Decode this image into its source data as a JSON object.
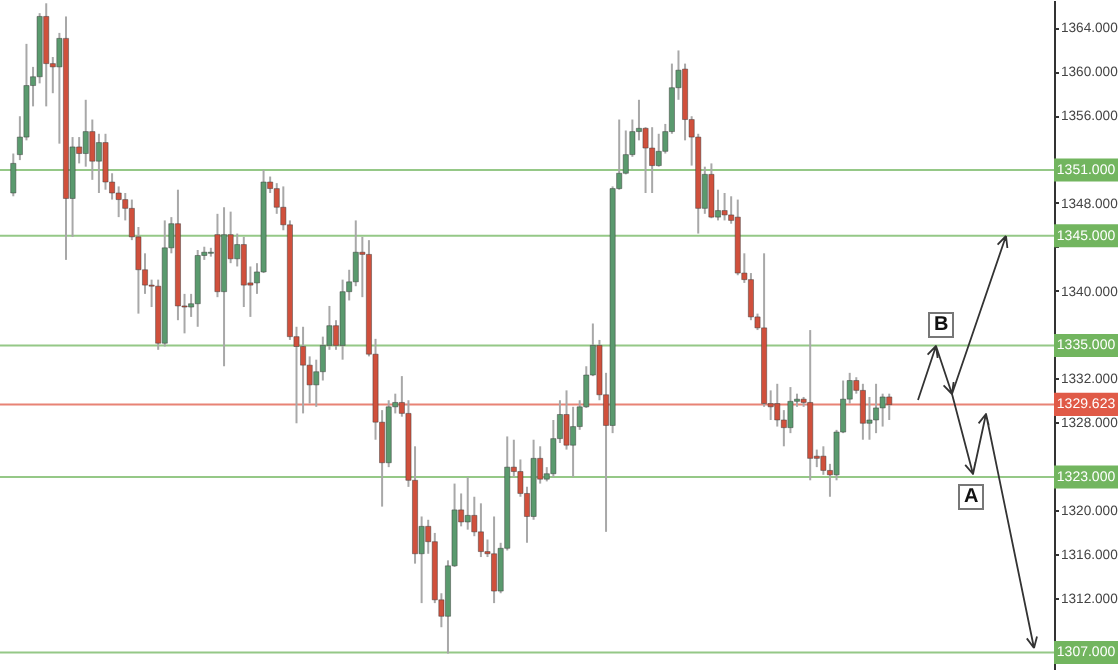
{
  "chart_data": {
    "type": "candlestick",
    "categories": [
      null,
      null,
      null,
      null,
      null,
      null,
      null,
      null,
      null,
      null,
      null,
      null,
      null,
      null,
      null,
      null,
      null,
      null,
      null,
      null,
      null,
      null,
      null,
      null,
      null,
      null,
      null,
      null,
      null,
      null,
      null,
      null,
      null,
      null,
      null,
      null,
      null,
      null,
      null,
      null,
      null,
      null,
      null,
      null,
      null,
      null,
      null,
      null,
      null,
      null,
      null,
      null,
      null,
      null,
      null,
      null,
      null,
      null,
      null,
      null,
      null,
      null,
      null,
      null,
      null,
      null,
      null,
      null,
      null,
      null,
      null,
      null,
      null,
      null,
      null,
      null,
      null,
      null,
      null,
      null,
      null,
      null,
      null,
      null,
      null,
      null,
      null,
      null,
      null,
      null,
      null,
      null,
      null,
      null,
      null,
      null,
      null,
      null,
      null,
      null,
      null,
      null,
      null,
      null,
      null,
      null,
      null,
      null,
      null,
      null,
      null,
      null,
      null,
      null,
      null,
      null,
      null,
      null,
      null,
      null,
      null,
      null,
      null,
      null,
      null,
      null,
      null,
      null,
      null,
      null,
      null,
      null,
      null,
      null,
      null,
      null,
      null,
      null,
      null,
      null,
      null,
      null,
      null,
      null,
      null,
      null,
      null,
      null,
      null,
      null,
      null,
      null,
      null,
      null,
      null,
      null,
      null
    ],
    "ohlc": [
      [
        1348.9,
        1352.5,
        1348.6,
        1351.6
      ],
      [
        1352.4,
        1355.9,
        1351.9,
        1354.0
      ],
      [
        1354.0,
        1362.5,
        1353.7,
        1358.7
      ],
      [
        1358.7,
        1360.4,
        1356.8,
        1359.5
      ],
      [
        1359.5,
        1365.3,
        1358.9,
        1365.0
      ],
      [
        1365.0,
        1366.2,
        1356.8,
        1360.7
      ],
      [
        1360.7,
        1361.3,
        1358.0,
        1360.4
      ],
      [
        1360.4,
        1363.5,
        1353.4,
        1363.0
      ],
      [
        1363.0,
        1365.0,
        1342.8,
        1348.4
      ],
      [
        1348.4,
        1354.0,
        1344.9,
        1353.1
      ],
      [
        1353.1,
        1354.0,
        1351.6,
        1352.5
      ],
      [
        1352.5,
        1357.4,
        1351.3,
        1354.5
      ],
      [
        1354.5,
        1355.6,
        1350.1,
        1351.8
      ],
      [
        1351.8,
        1354.3,
        1348.9,
        1353.5
      ],
      [
        1353.5,
        1354.3,
        1349.2,
        1349.9
      ],
      [
        1349.9,
        1350.7,
        1348.3,
        1348.9
      ],
      [
        1348.9,
        1349.5,
        1346.7,
        1348.3
      ],
      [
        1348.3,
        1348.9,
        1346.4,
        1347.5
      ],
      [
        1347.5,
        1348.3,
        1344.6,
        1344.9
      ],
      [
        1344.9,
        1345.8,
        1337.9,
        1341.9
      ],
      [
        1341.9,
        1343.4,
        1339.7,
        1340.5
      ],
      [
        1340.5,
        1341.0,
        1338.5,
        1340.4
      ],
      [
        1340.4,
        1341.0,
        1334.6,
        1335.2
      ],
      [
        1335.2,
        1346.4,
        1334.9,
        1343.9
      ],
      [
        1343.9,
        1346.7,
        1343.4,
        1346.1
      ],
      [
        1346.1,
        1349.2,
        1337.3,
        1338.6
      ],
      [
        1338.6,
        1339.7,
        1336.1,
        1338.5
      ],
      [
        1338.5,
        1339.7,
        1337.6,
        1338.8
      ],
      [
        1338.8,
        1343.7,
        1336.7,
        1343.2
      ],
      [
        1343.2,
        1344.0,
        1342.8,
        1343.5
      ],
      [
        1343.4,
        1343.9,
        1343.1,
        1343.5
      ],
      [
        1345.1,
        1347.0,
        1339.4,
        1339.9
      ],
      [
        1339.9,
        1347.6,
        1333.1,
        1345.1
      ],
      [
        1345.1,
        1347.2,
        1342.5,
        1342.9
      ],
      [
        1342.9,
        1345.2,
        1342.2,
        1344.2
      ],
      [
        1344.2,
        1344.9,
        1338.5,
        1340.5
      ],
      [
        1340.7,
        1342.2,
        1337.6,
        1340.5
      ],
      [
        1340.7,
        1342.5,
        1339.7,
        1341.7
      ],
      [
        1341.7,
        1351.0,
        1341.6,
        1349.9
      ],
      [
        1349.9,
        1350.4,
        1348.9,
        1349.3
      ],
      [
        1349.3,
        1349.8,
        1347.0,
        1347.6
      ],
      [
        1347.6,
        1349.5,
        1345.5,
        1346.0
      ],
      [
        1346.0,
        1346.4,
        1335.5,
        1335.8
      ],
      [
        1335.8,
        1336.7,
        1327.9,
        1334.9
      ],
      [
        1334.9,
        1336.7,
        1328.8,
        1333.2
      ],
      [
        1333.2,
        1334.0,
        1329.7,
        1331.4
      ],
      [
        1331.4,
        1333.7,
        1329.4,
        1332.6
      ],
      [
        1332.6,
        1335.8,
        1331.8,
        1335.0
      ],
      [
        1335.0,
        1338.6,
        1334.6,
        1336.8
      ],
      [
        1336.8,
        1337.3,
        1334.6,
        1335.0
      ],
      [
        1335.0,
        1341.0,
        1333.7,
        1339.9
      ],
      [
        1339.9,
        1341.9,
        1339.1,
        1340.8
      ],
      [
        1340.8,
        1346.4,
        1340.4,
        1343.5
      ],
      [
        1343.5,
        1344.9,
        1339.4,
        1343.3
      ],
      [
        1343.3,
        1344.6,
        1334.0,
        1334.2
      ],
      [
        1334.2,
        1335.6,
        1326.4,
        1328.0
      ],
      [
        1328.0,
        1329.1,
        1320.3,
        1324.3
      ],
      [
        1324.3,
        1330.0,
        1323.9,
        1329.4
      ],
      [
        1329.4,
        1330.6,
        1328.8,
        1329.8
      ],
      [
        1329.8,
        1332.2,
        1328.5,
        1328.8
      ],
      [
        1328.8,
        1330.0,
        1322.1,
        1322.7
      ],
      [
        1322.7,
        1325.8,
        1315.1,
        1316.0
      ],
      [
        1316.0,
        1319.4,
        1311.5,
        1318.5
      ],
      [
        1318.5,
        1319.1,
        1316.0,
        1317.1
      ],
      [
        1317.1,
        1317.9,
        1311.5,
        1311.8
      ],
      [
        1311.8,
        1312.4,
        1309.3,
        1310.3
      ],
      [
        1310.3,
        1315.4,
        1306.9,
        1314.9
      ],
      [
        1314.9,
        1322.4,
        1314.8,
        1320.0
      ],
      [
        1320.0,
        1321.5,
        1318.5,
        1318.9
      ],
      [
        1318.9,
        1323.0,
        1318.2,
        1319.5
      ],
      [
        1319.5,
        1321.2,
        1317.6,
        1318.0
      ],
      [
        1318.0,
        1320.6,
        1315.7,
        1316.2
      ],
      [
        1316.2,
        1317.3,
        1315.7,
        1316.0
      ],
      [
        1316.0,
        1319.4,
        1311.5,
        1312.6
      ],
      [
        1312.6,
        1317.0,
        1312.4,
        1316.5
      ],
      [
        1316.5,
        1326.7,
        1316.3,
        1323.9
      ],
      [
        1323.9,
        1326.4,
        1323.0,
        1323.5
      ],
      [
        1323.5,
        1324.6,
        1321.2,
        1321.5
      ],
      [
        1321.5,
        1322.1,
        1317.0,
        1319.4
      ],
      [
        1319.4,
        1326.4,
        1319.1,
        1324.7
      ],
      [
        1324.7,
        1325.8,
        1322.4,
        1322.8
      ],
      [
        1322.8,
        1323.9,
        1322.6,
        1323.3
      ],
      [
        1323.3,
        1328.2,
        1323.0,
        1326.5
      ],
      [
        1326.5,
        1330.0,
        1326.1,
        1328.7
      ],
      [
        1328.7,
        1330.9,
        1325.5,
        1325.9
      ],
      [
        1325.9,
        1329.4,
        1323.0,
        1327.6
      ],
      [
        1327.6,
        1330.0,
        1327.3,
        1329.4
      ],
      [
        1329.4,
        1333.1,
        1329.3,
        1332.3
      ],
      [
        1332.3,
        1337.0,
        1332.2,
        1335.0
      ],
      [
        1335.0,
        1335.5,
        1330.0,
        1330.5
      ],
      [
        1330.5,
        1332.5,
        1318.0,
        1327.7
      ],
      [
        1327.7,
        1349.5,
        1327.0,
        1349.3
      ],
      [
        1349.3,
        1355.6,
        1349.2,
        1350.7
      ],
      [
        1350.7,
        1354.6,
        1350.6,
        1352.4
      ],
      [
        1352.4,
        1355.6,
        1352.2,
        1354.5
      ],
      [
        1354.5,
        1357.4,
        1353.7,
        1354.8
      ],
      [
        1354.8,
        1354.9,
        1348.9,
        1353.0
      ],
      [
        1353.0,
        1354.9,
        1348.9,
        1351.4
      ],
      [
        1351.4,
        1354.3,
        1351.3,
        1352.7
      ],
      [
        1352.7,
        1355.2,
        1352.5,
        1354.5
      ],
      [
        1354.5,
        1360.7,
        1354.3,
        1358.5
      ],
      [
        1358.5,
        1361.9,
        1357.4,
        1360.1
      ],
      [
        1360.2,
        1360.7,
        1353.7,
        1355.6
      ],
      [
        1355.6,
        1355.9,
        1351.4,
        1354.0
      ],
      [
        1354.0,
        1354.3,
        1345.2,
        1347.5
      ],
      [
        1347.5,
        1351.3,
        1347.0,
        1350.6
      ],
      [
        1350.6,
        1351.6,
        1346.6,
        1346.7
      ],
      [
        1346.7,
        1349.2,
        1346.4,
        1347.3
      ],
      [
        1347.3,
        1348.9,
        1346.4,
        1346.9
      ],
      [
        1346.9,
        1348.6,
        1346.1,
        1346.4
      ],
      [
        1346.7,
        1348.3,
        1341.4,
        1341.6
      ],
      [
        1341.6,
        1343.4,
        1340.7,
        1341.0
      ],
      [
        1341.0,
        1341.6,
        1337.3,
        1337.6
      ],
      [
        1337.6,
        1337.9,
        1336.4,
        1336.6
      ],
      [
        1336.6,
        1343.4,
        1329.4,
        1329.7
      ],
      [
        1329.7,
        1330.9,
        1328.2,
        1329.4
      ],
      [
        1329.7,
        1331.5,
        1327.6,
        1328.2
      ],
      [
        1328.2,
        1329.1,
        1325.8,
        1327.5
      ],
      [
        1327.5,
        1331.2,
        1327.0,
        1329.9
      ],
      [
        1329.9,
        1330.6,
        1329.4,
        1330.1
      ],
      [
        1330.1,
        1330.3,
        1329.4,
        1329.8
      ],
      [
        1329.8,
        1336.4,
        1322.7,
        1324.7
      ],
      [
        1324.9,
        1325.5,
        1323.9,
        1324.7
      ],
      [
        1324.9,
        1325.8,
        1323.2,
        1323.6
      ],
      [
        1323.6,
        1324.2,
        1321.2,
        1323.2
      ],
      [
        1323.2,
        1327.3,
        1322.7,
        1327.1
      ],
      [
        1327.1,
        1331.8,
        1327.0,
        1330.1
      ],
      [
        1330.1,
        1332.5,
        1329.7,
        1331.8
      ],
      [
        1331.8,
        1332.1,
        1330.6,
        1330.9
      ],
      [
        1330.9,
        1331.5,
        1326.4,
        1327.9
      ],
      [
        1327.9,
        1330.3,
        1326.4,
        1328.2
      ],
      [
        1328.2,
        1331.5,
        1327.0,
        1329.3
      ],
      [
        1329.3,
        1330.6,
        1327.6,
        1330.3
      ],
      [
        1330.3,
        1330.6,
        1328.2,
        1329.6
      ],
      null,
      null,
      null,
      null,
      null,
      null,
      null,
      null,
      null,
      null,
      null,
      null,
      null,
      null,
      null,
      null,
      null,
      null,
      null,
      null,
      null,
      null,
      null
    ],
    "colors": [
      "#5a9a6e",
      "#5a9a6e",
      "#5a9a6e",
      "#5a9a6e",
      "#5a9a6e",
      "#d0503c",
      "#d0503c",
      "#5a9a6e",
      "#d0503c",
      "#5a9a6e",
      "#d0503c",
      "#5a9a6e",
      "#d0503c",
      "#5a9a6e",
      "#d0503c",
      "#d0503c",
      "#d0503c",
      "#d0503c",
      "#d0503c",
      "#d0503c",
      "#d0503c",
      "#d0503c",
      "#d0503c",
      "#5a9a6e",
      "#5a9a6e",
      "#d0503c",
      "#d0503c",
      "#5a9a6e",
      "#5a9a6e",
      "#5a9a6e",
      "#5a9a6e",
      "#d0503c",
      "#5a9a6e",
      "#d0503c",
      "#5a9a6e",
      "#d0503c",
      "#d0503c",
      "#5a9a6e",
      "#5a9a6e",
      "#d0503c",
      "#d0503c",
      "#d0503c",
      "#d0503c",
      "#d0503c",
      "#d0503c",
      "#d0503c",
      "#5a9a6e",
      "#5a9a6e",
      "#5a9a6e",
      "#d0503c",
      "#5a9a6e",
      "#5a9a6e",
      "#5a9a6e",
      "#d0503c",
      "#d0503c",
      "#d0503c",
      "#d0503c",
      "#5a9a6e",
      "#5a9a6e",
      "#d0503c",
      "#d0503c",
      "#d0503c",
      "#5a9a6e",
      "#d0503c",
      "#d0503c",
      "#d0503c",
      "#5a9a6e",
      "#5a9a6e",
      "#d0503c",
      "#5a9a6e",
      "#d0503c",
      "#d0503c",
      "#d0503c",
      "#d0503c",
      "#5a9a6e",
      "#5a9a6e",
      "#d0503c",
      "#d0503c",
      "#d0503c",
      "#5a9a6e",
      "#d0503c",
      "#5a9a6e",
      "#5a9a6e",
      "#5a9a6e",
      "#d0503c",
      "#5a9a6e",
      "#5a9a6e",
      "#5a9a6e",
      "#5a9a6e",
      "#d0503c",
      "#d0503c",
      "#5a9a6e",
      "#5a9a6e",
      "#5a9a6e",
      "#5a9a6e",
      "#5a9a6e",
      "#d0503c",
      "#d0503c",
      "#5a9a6e",
      "#5a9a6e",
      "#5a9a6e",
      "#5a9a6e",
      "#d0503c",
      "#d0503c",
      "#d0503c",
      "#5a9a6e",
      "#d0503c",
      "#5a9a6e",
      "#d0503c",
      "#d0503c",
      "#d0503c",
      "#d0503c",
      "#d0503c",
      "#d0503c",
      "#d0503c",
      "#d0503c",
      "#d0503c",
      "#d0503c",
      "#5a9a6e",
      "#5a9a6e",
      "#d0503c",
      "#d0503c",
      "#d0503c",
      "#d0503c",
      "#d0503c",
      "#5a9a6e",
      "#5a9a6e",
      "#5a9a6e",
      "#d0503c",
      "#d0503c",
      "#5a9a6e",
      "#5a9a6e",
      "#5a9a6e",
      "#d0503c",
      null,
      null,
      null,
      null,
      null,
      null,
      null,
      null,
      null,
      null,
      null,
      null,
      null,
      null,
      null,
      null,
      null,
      null,
      null,
      null,
      null,
      null,
      null
    ],
    "ylim": [
      1305.4,
      1366.5
    ],
    "yticks": [
      {
        "value": 1308,
        "label": null
      },
      {
        "value": 1312,
        "label": "1312.000"
      },
      {
        "value": 1316,
        "label": "1316.000"
      },
      {
        "value": 1320,
        "label": "1320.000"
      },
      {
        "value": 1324,
        "label": null
      },
      {
        "value": 1328,
        "label": "1328.000"
      },
      {
        "value": 1332,
        "label": "1332.000"
      },
      {
        "value": 1336,
        "label": null
      },
      {
        "value": 1340,
        "label": "1340.000"
      },
      {
        "value": 1344,
        "label": null
      },
      {
        "value": 1348,
        "label": "1348.000"
      },
      {
        "value": 1352,
        "label": null
      },
      {
        "value": 1356,
        "label": "1356.000"
      },
      {
        "value": 1360,
        "label": "1360.000"
      },
      {
        "value": 1364,
        "label": "1364.000"
      }
    ],
    "tick_labels": "y",
    "ref_lines": [
      {
        "axis": "y",
        "value": 1351,
        "label": "1351.000",
        "color": "#72b55f"
      },
      {
        "axis": "y",
        "value": 1345,
        "label": "1345.000",
        "color": "#72b55f"
      },
      {
        "axis": "y",
        "value": 1335,
        "label": "1335.000",
        "color": "#72b55f"
      },
      {
        "axis": "y",
        "value": 1329.623,
        "label": "1329.623",
        "color": "#e05a47"
      },
      {
        "axis": "y",
        "value": 1323,
        "label": "1323.000",
        "color": "#72b55f"
      },
      {
        "axis": "y",
        "value": 1307,
        "label": "1307.000",
        "color": "#72b55f"
      }
    ],
    "annotations": [
      "B",
      "A"
    ]
  }
}
